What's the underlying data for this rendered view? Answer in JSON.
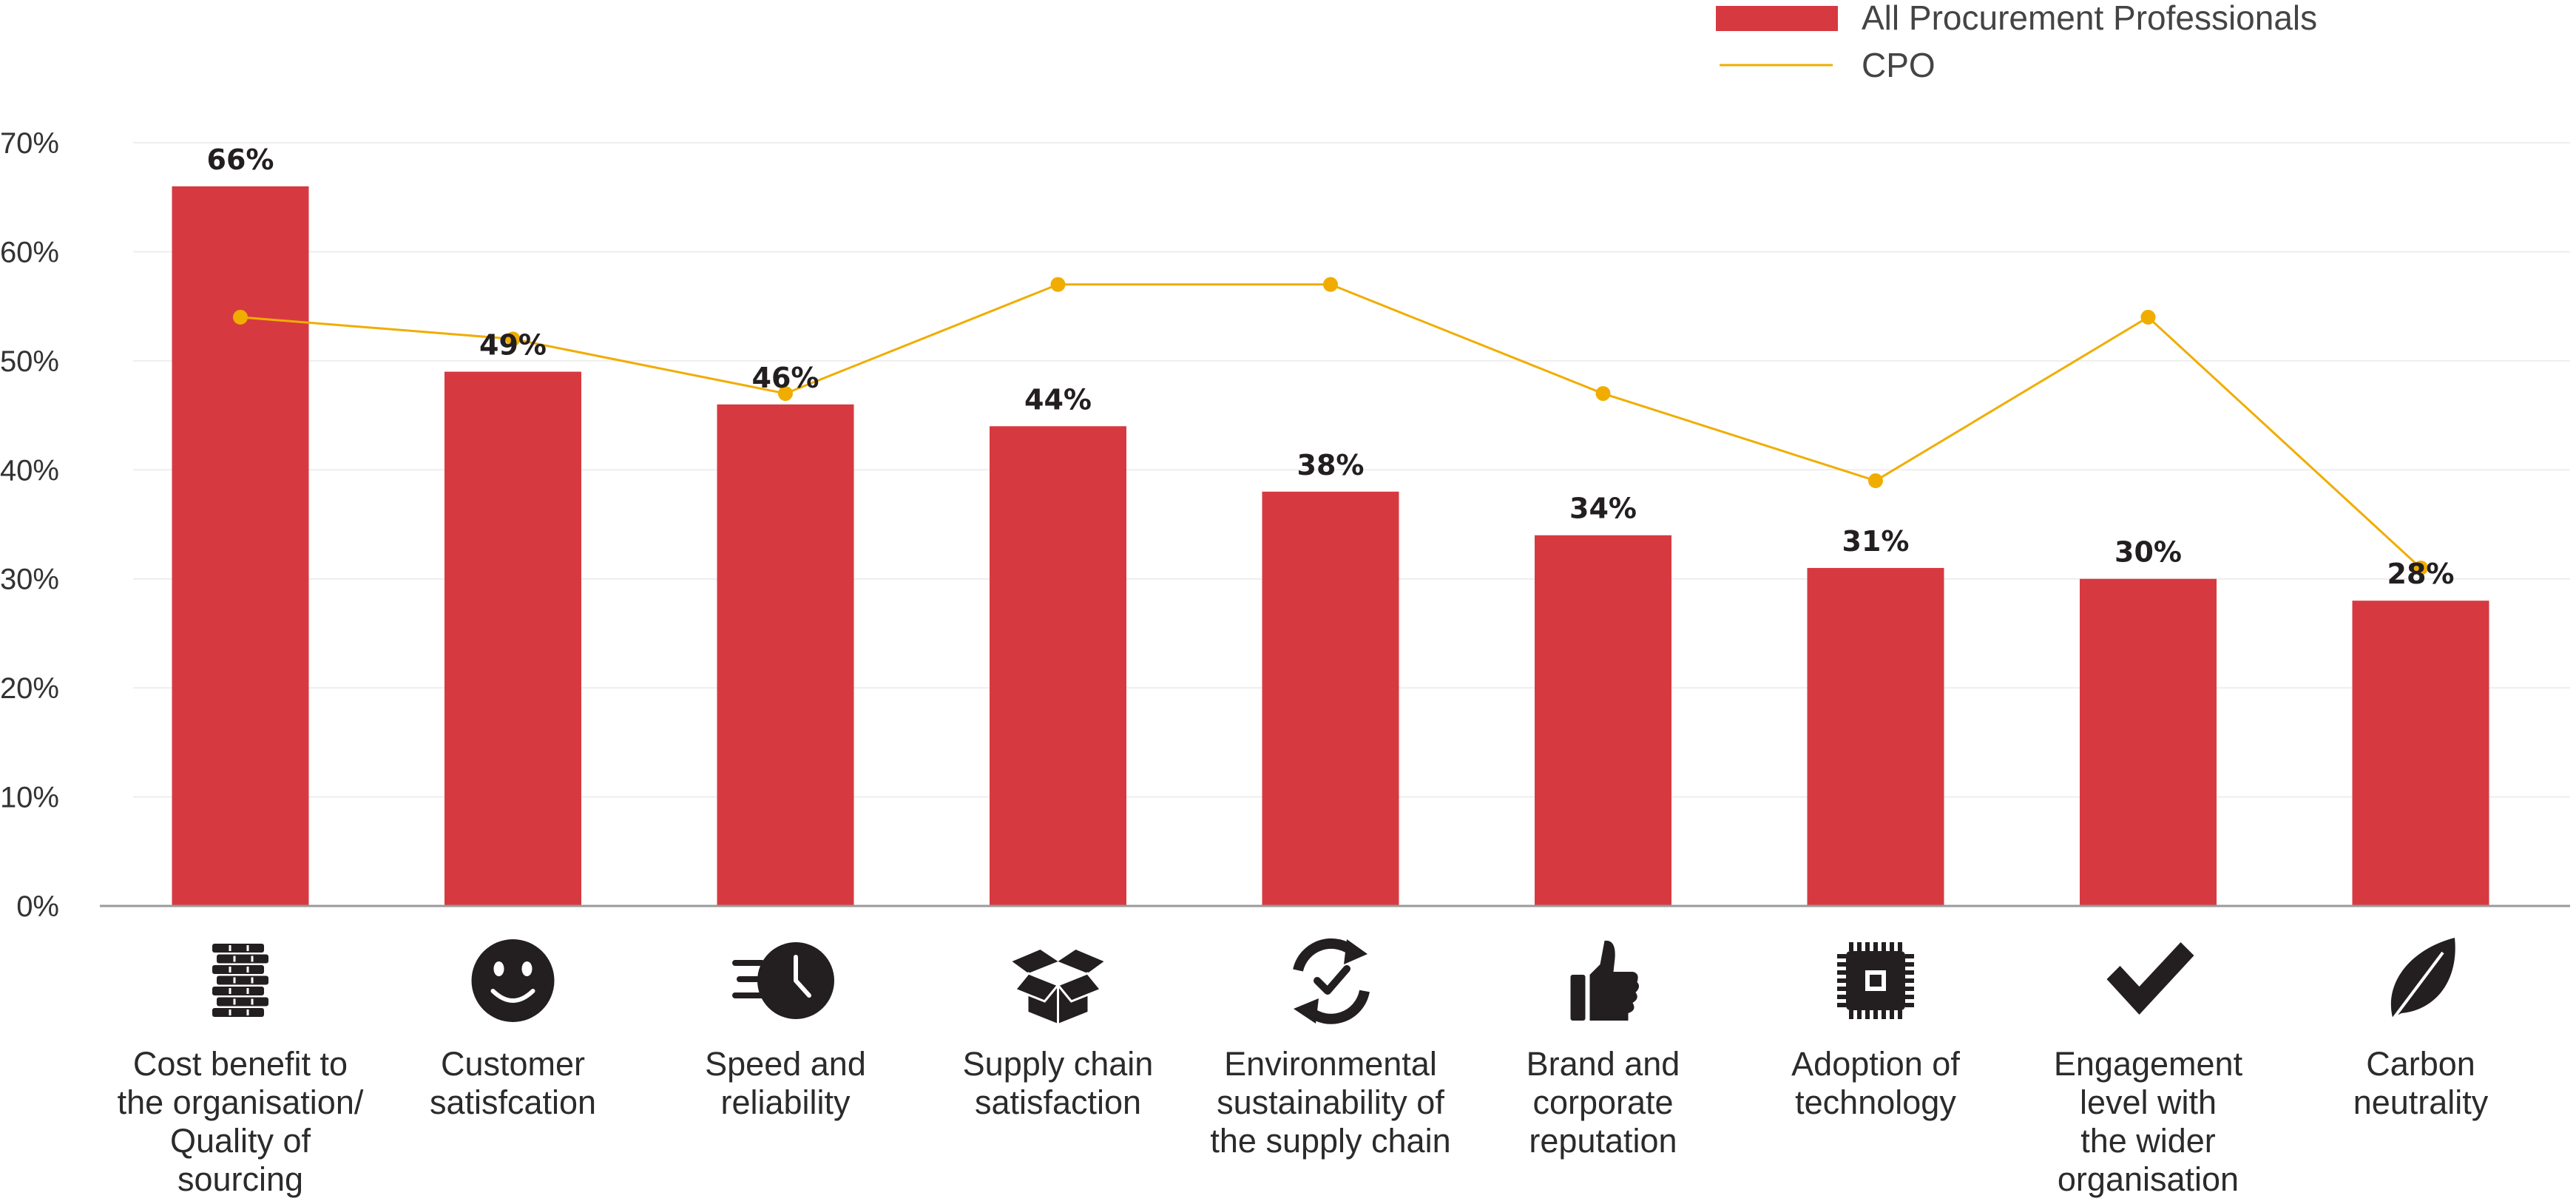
{
  "chart_data": {
    "type": "bar",
    "categories": [
      "Cost benefit to the organisation/ Quality of sourcing",
      "Customer satisfcation",
      "Speed and reliability",
      "Supply chain satisfaction",
      "Environmental sustainability of the supply chain",
      "Brand and corporate reputation",
      "Adoption of technology",
      "Engagement level with the wider organisation",
      "Carbon neutrality"
    ],
    "category_label_lines": [
      [
        "Cost benefit to",
        "the organisation/",
        "Quality of",
        "sourcing"
      ],
      [
        "Customer",
        "satisfcation"
      ],
      [
        "Speed and",
        "reliability"
      ],
      [
        "Supply chain",
        "satisfaction"
      ],
      [
        "Environmental",
        "sustainability of",
        "the supply chain"
      ],
      [
        "Brand and",
        "corporate",
        "reputation"
      ],
      [
        "Adoption of",
        "technology"
      ],
      [
        "Engagement",
        "level with",
        "the wider",
        "organisation"
      ],
      [
        "Carbon",
        "neutrality"
      ]
    ],
    "category_icons": [
      "coins-stack-icon",
      "smiley-face-icon",
      "fast-clock-icon",
      "open-box-icon",
      "recycle-check-icon",
      "thumbs-up-icon",
      "microchip-icon",
      "checkmark-icon",
      "leaf-icon"
    ],
    "series": [
      {
        "name": "All Procurement Professionals",
        "type": "bar",
        "color": "#d63a40",
        "values": [
          66,
          49,
          46,
          44,
          38,
          34,
          31,
          30,
          28
        ],
        "data_labels": [
          "66%",
          "49%",
          "46%",
          "44%",
          "38%",
          "34%",
          "31%",
          "30%",
          "28%"
        ]
      },
      {
        "name": "CPO",
        "type": "line",
        "color": "#f0ad00",
        "values": [
          54,
          52,
          47,
          57,
          57,
          47,
          39,
          54,
          31
        ]
      }
    ],
    "ylim": [
      0,
      70
    ],
    "yticks": [
      0,
      10,
      20,
      30,
      40,
      50,
      60,
      70
    ],
    "ytick_labels": [
      "0%",
      "10%",
      "20%",
      "30%",
      "40%",
      "50%",
      "60%",
      "70%"
    ],
    "grid": true,
    "legend": "top-right",
    "title": "",
    "xlabel": "",
    "ylabel": ""
  }
}
